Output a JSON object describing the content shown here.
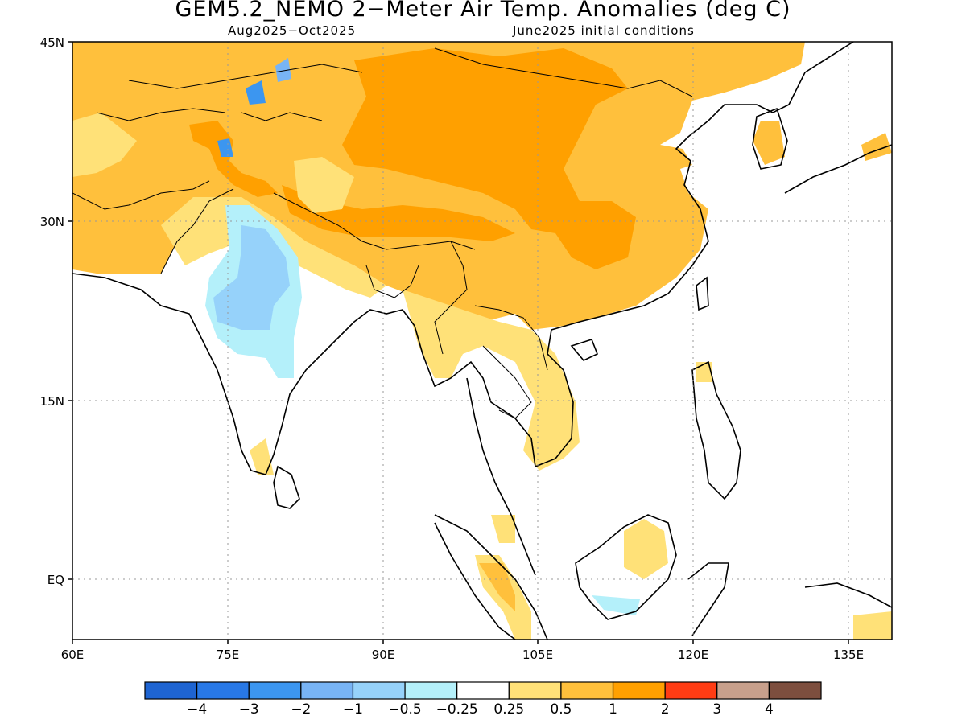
{
  "title": "GEM5.2_NEMO 2−Meter Air Temp. Anomalies (deg C)",
  "subtitle_left": "Aug2025−Oct2025",
  "subtitle_right": "June2025 initial conditions",
  "lat_labels": [
    "45N",
    "30N",
    "15N",
    "EQ"
  ],
  "lon_labels": [
    "60E",
    "75E",
    "90E",
    "105E",
    "120E",
    "135E"
  ],
  "colorbar": {
    "colors": [
      "#1e64d2",
      "#2878e6",
      "#3c96f0",
      "#78b4f5",
      "#96d2fa",
      "#b4f0fa",
      "#ffffff",
      "#ffe178",
      "#ffc03c",
      "#ffa000",
      "#ff3c14",
      "#c8a08c",
      "#7d4e3e"
    ],
    "labels": [
      "−4",
      "−3",
      "−2",
      "−1",
      "−0.5",
      "−0.25",
      "0.25",
      "0.5",
      "1",
      "2",
      "3",
      "4"
    ]
  },
  "legend": {
    "very_light_orange": "#ffe178",
    "light_orange": "#ffc03c",
    "orange": "#ffa000",
    "light_blue": "#b4f0fa",
    "sky_blue": "#96d2fa",
    "blue": "#3c96f0"
  }
}
